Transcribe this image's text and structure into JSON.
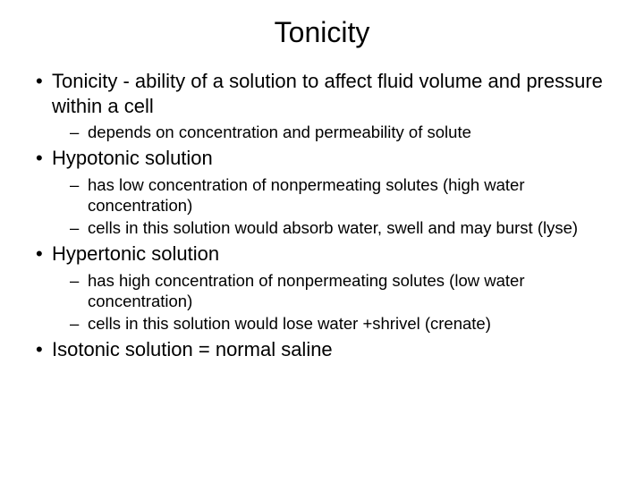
{
  "title": "Tonicity",
  "bullets": [
    {
      "text": "Tonicity - ability of a solution to affect fluid volume and pressure within a cell",
      "sub": [
        "depends on concentration and permeability of solute"
      ]
    },
    {
      "text": "Hypotonic solution",
      "sub": [
        "has low concentration of  nonpermeating solutes (high water concentration)",
        "cells in this solution would absorb water, swell and may burst (lyse)"
      ]
    },
    {
      "text": "Hypertonic solution",
      "sub": [
        "has high concentration of nonpermeating solutes (low water concentration)",
        "cells in this solution would lose water +shrivel (crenate)"
      ]
    },
    {
      "text": "Isotonic solution = normal saline",
      "sub": []
    }
  ],
  "colors": {
    "background": "#ffffff",
    "text": "#000000"
  },
  "fonts": {
    "title_size": 32,
    "level1_size": 22,
    "level2_size": 18.5,
    "family": "Arial"
  }
}
